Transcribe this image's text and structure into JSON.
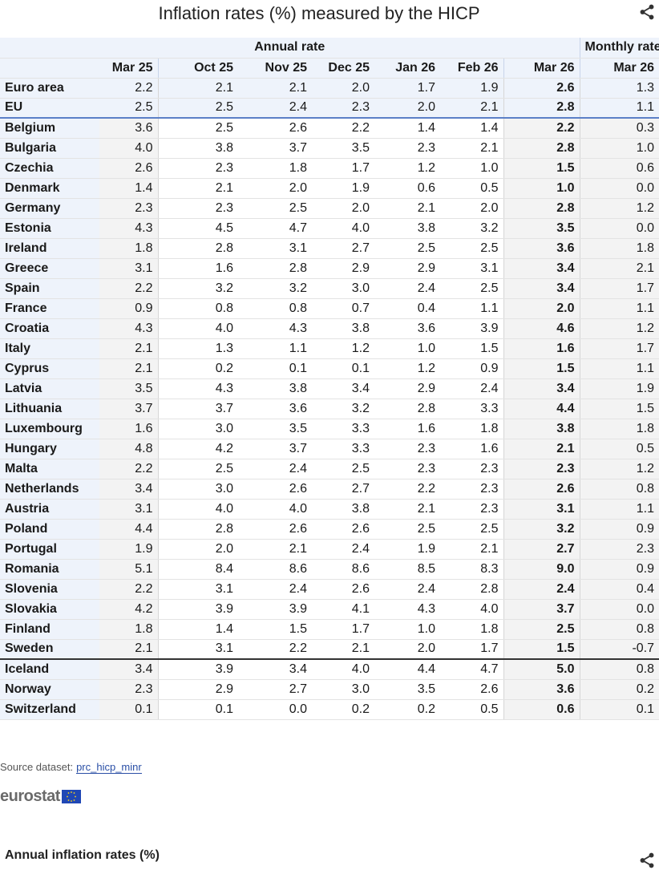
{
  "header": {
    "title": "Inflation rates (%) measured by the HICP",
    "share_icon": "share-icon"
  },
  "table": {
    "group_annual": "Annual rate",
    "group_monthly": "Monthly rate",
    "columns": [
      "Mar 25",
      "Oct 25",
      "Nov 25",
      "Dec 25",
      "Jan 26",
      "Feb 26",
      "Mar 26",
      "Mar 26"
    ],
    "aggregates": [
      {
        "name": "Euro area",
        "values": [
          "2.2",
          "2.1",
          "2.1",
          "2.0",
          "1.7",
          "1.9",
          "2.6",
          "1.3"
        ]
      },
      {
        "name": "EU",
        "values": [
          "2.5",
          "2.5",
          "2.4",
          "2.3",
          "2.0",
          "2.1",
          "2.8",
          "1.1"
        ]
      }
    ],
    "members": [
      {
        "name": "Belgium",
        "values": [
          "3.6",
          "2.5",
          "2.6",
          "2.2",
          "1.4",
          "1.4",
          "2.2",
          "0.3"
        ]
      },
      {
        "name": "Bulgaria",
        "values": [
          "4.0",
          "3.8",
          "3.7",
          "3.5",
          "2.3",
          "2.1",
          "2.8",
          "1.0"
        ]
      },
      {
        "name": "Czechia",
        "values": [
          "2.6",
          "2.3",
          "1.8",
          "1.7",
          "1.2",
          "1.0",
          "1.5",
          "0.6"
        ]
      },
      {
        "name": "Denmark",
        "values": [
          "1.4",
          "2.1",
          "2.0",
          "1.9",
          "0.6",
          "0.5",
          "1.0",
          "0.0"
        ]
      },
      {
        "name": "Germany",
        "values": [
          "2.3",
          "2.3",
          "2.5",
          "2.0",
          "2.1",
          "2.0",
          "2.8",
          "1.2"
        ]
      },
      {
        "name": "Estonia",
        "values": [
          "4.3",
          "4.5",
          "4.7",
          "4.0",
          "3.8",
          "3.2",
          "3.5",
          "0.0"
        ]
      },
      {
        "name": "Ireland",
        "values": [
          "1.8",
          "2.8",
          "3.1",
          "2.7",
          "2.5",
          "2.5",
          "3.6",
          "1.8"
        ]
      },
      {
        "name": "Greece",
        "values": [
          "3.1",
          "1.6",
          "2.8",
          "2.9",
          "2.9",
          "3.1",
          "3.4",
          "2.1"
        ]
      },
      {
        "name": "Spain",
        "values": [
          "2.2",
          "3.2",
          "3.2",
          "3.0",
          "2.4",
          "2.5",
          "3.4",
          "1.7"
        ]
      },
      {
        "name": "France",
        "values": [
          "0.9",
          "0.8",
          "0.8",
          "0.7",
          "0.4",
          "1.1",
          "2.0",
          "1.1"
        ]
      },
      {
        "name": "Croatia",
        "values": [
          "4.3",
          "4.0",
          "4.3",
          "3.8",
          "3.6",
          "3.9",
          "4.6",
          "1.2"
        ]
      },
      {
        "name": "Italy",
        "values": [
          "2.1",
          "1.3",
          "1.1",
          "1.2",
          "1.0",
          "1.5",
          "1.6",
          "1.7"
        ]
      },
      {
        "name": "Cyprus",
        "values": [
          "2.1",
          "0.2",
          "0.1",
          "0.1",
          "1.2",
          "0.9",
          "1.5",
          "1.1"
        ]
      },
      {
        "name": "Latvia",
        "values": [
          "3.5",
          "4.3",
          "3.8",
          "3.4",
          "2.9",
          "2.4",
          "3.4",
          "1.9"
        ]
      },
      {
        "name": "Lithuania",
        "values": [
          "3.7",
          "3.7",
          "3.6",
          "3.2",
          "2.8",
          "3.3",
          "4.4",
          "1.5"
        ]
      },
      {
        "name": "Luxembourg",
        "values": [
          "1.6",
          "3.0",
          "3.5",
          "3.3",
          "1.6",
          "1.8",
          "3.8",
          "1.8"
        ]
      },
      {
        "name": "Hungary",
        "values": [
          "4.8",
          "4.2",
          "3.7",
          "3.3",
          "2.3",
          "1.6",
          "2.1",
          "0.5"
        ]
      },
      {
        "name": "Malta",
        "values": [
          "2.2",
          "2.5",
          "2.4",
          "2.5",
          "2.3",
          "2.3",
          "2.3",
          "1.2"
        ]
      },
      {
        "name": "Netherlands",
        "values": [
          "3.4",
          "3.0",
          "2.6",
          "2.7",
          "2.2",
          "2.3",
          "2.6",
          "0.8"
        ]
      },
      {
        "name": "Austria",
        "values": [
          "3.1",
          "4.0",
          "4.0",
          "3.8",
          "2.1",
          "2.3",
          "3.1",
          "1.1"
        ]
      },
      {
        "name": "Poland",
        "values": [
          "4.4",
          "2.8",
          "2.6",
          "2.6",
          "2.5",
          "2.5",
          "3.2",
          "0.9"
        ]
      },
      {
        "name": "Portugal",
        "values": [
          "1.9",
          "2.0",
          "2.1",
          "2.4",
          "1.9",
          "2.1",
          "2.7",
          "2.3"
        ]
      },
      {
        "name": "Romania",
        "values": [
          "5.1",
          "8.4",
          "8.6",
          "8.6",
          "8.5",
          "8.3",
          "9.0",
          "0.9"
        ]
      },
      {
        "name": "Slovenia",
        "values": [
          "2.2",
          "3.1",
          "2.4",
          "2.6",
          "2.4",
          "2.8",
          "2.4",
          "0.4"
        ]
      },
      {
        "name": "Slovakia",
        "values": [
          "4.2",
          "3.9",
          "3.9",
          "4.1",
          "4.3",
          "4.0",
          "3.7",
          "0.0"
        ]
      },
      {
        "name": "Finland",
        "values": [
          "1.8",
          "1.4",
          "1.5",
          "1.7",
          "1.0",
          "1.8",
          "2.5",
          "0.8"
        ]
      },
      {
        "name": "Sweden",
        "values": [
          "2.1",
          "3.1",
          "2.2",
          "2.1",
          "2.0",
          "1.7",
          "1.5",
          "-0.7"
        ]
      }
    ],
    "others": [
      {
        "name": "Iceland",
        "values": [
          "3.4",
          "3.9",
          "3.4",
          "4.0",
          "4.4",
          "4.7",
          "5.0",
          "0.8"
        ]
      },
      {
        "name": "Norway",
        "values": [
          "2.3",
          "2.9",
          "2.7",
          "3.0",
          "3.5",
          "2.6",
          "3.6",
          "0.2"
        ]
      },
      {
        "name": "Switzerland",
        "values": [
          "0.1",
          "0.1",
          "0.0",
          "0.2",
          "0.2",
          "0.5",
          "0.6",
          "0.1"
        ]
      }
    ]
  },
  "footer": {
    "source_label": "Source dataset:",
    "source_link": "prc_hicp_minr",
    "logo_text": "eurostat",
    "section_title": "Annual inflation rates (%)"
  },
  "colors": {
    "header_bg": "#eef3fb",
    "accent_line": "#5b7fc7",
    "link": "#2a4fa6",
    "eu_flag": "#1f47b5"
  }
}
